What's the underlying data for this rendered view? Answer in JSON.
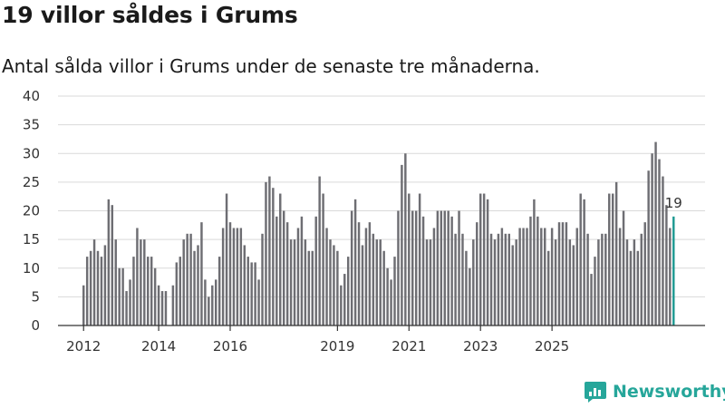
{
  "title": "19 villor såldes i Grums",
  "subtitle": "Antal sålda villor i Grums under de senaste tre månaderna.",
  "brand": "Newsworthy",
  "colors": {
    "bar": "#6e6e73",
    "highlight": "#1f9a92",
    "grid": "#d9d9d9",
    "brand": "#26a69a"
  },
  "chart_data": {
    "type": "bar",
    "title": "19 villor såldes i Grums",
    "subtitle": "Antal sålda villor i Grums under de senaste tre månaderna.",
    "xlabel": "",
    "ylabel": "",
    "ylim": [
      0,
      40
    ],
    "yticks": [
      0,
      5,
      10,
      15,
      20,
      25,
      30,
      35,
      40
    ],
    "xticks": [
      {
        "label": "2012",
        "index": 0
      },
      {
        "label": "2014",
        "index": 21
      },
      {
        "label": "2016",
        "index": 41
      },
      {
        "label": "2019",
        "index": 71
      },
      {
        "label": "2021",
        "index": 91
      },
      {
        "label": "2023",
        "index": 111
      },
      {
        "label": "2025",
        "index": 131
      }
    ],
    "period": "rolling three-month totals, monthly, 2012 to 2025",
    "values": [
      7,
      12,
      13,
      15,
      13,
      12,
      14,
      22,
      21,
      15,
      10,
      10,
      6,
      8,
      12,
      17,
      15,
      15,
      12,
      12,
      10,
      7,
      6,
      6,
      0,
      7,
      11,
      12,
      15,
      16,
      16,
      13,
      14,
      18,
      8,
      5,
      7,
      8,
      12,
      17,
      23,
      18,
      17,
      17,
      17,
      14,
      12,
      11,
      11,
      8,
      16,
      25,
      26,
      24,
      19,
      23,
      20,
      18,
      15,
      15,
      17,
      19,
      15,
      13,
      13,
      19,
      26,
      23,
      17,
      15,
      14,
      13,
      7,
      9,
      12,
      20,
      22,
      18,
      14,
      17,
      18,
      16,
      15,
      15,
      13,
      10,
      8,
      12,
      20,
      28,
      30,
      23,
      20,
      20,
      23,
      19,
      15,
      15,
      17,
      20,
      20,
      20,
      20,
      19,
      16,
      20,
      16,
      13,
      10,
      15,
      18,
      23,
      23,
      22,
      16,
      15,
      16,
      17,
      16,
      16,
      14,
      15,
      17,
      17,
      17,
      19,
      22,
      19,
      17,
      17,
      13,
      17,
      15,
      18,
      18,
      18,
      15,
      14,
      17,
      23,
      22,
      16,
      9,
      12,
      15,
      16,
      16,
      23,
      23,
      25,
      17,
      20,
      15,
      13,
      15,
      13,
      16,
      18,
      27,
      30,
      32,
      29,
      26,
      21,
      17,
      19
    ],
    "last_value_label": "19"
  }
}
